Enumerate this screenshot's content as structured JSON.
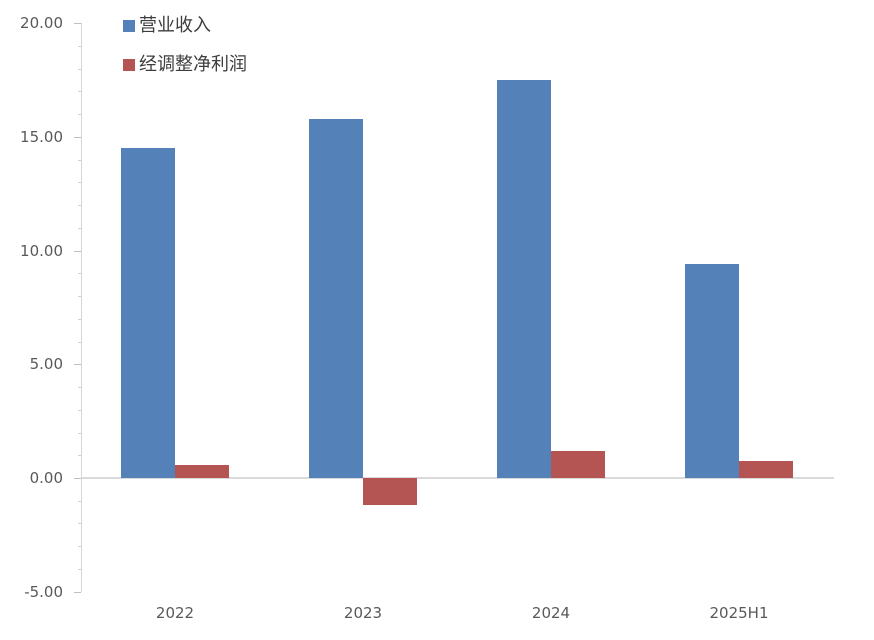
{
  "chart_data": {
    "type": "bar",
    "categories": [
      "2022",
      "2023",
      "2024",
      "2025H1"
    ],
    "series": [
      {
        "name": "营业收入",
        "color": "#5581B9",
        "values": [
          14.5,
          15.8,
          17.5,
          9.4
        ]
      },
      {
        "name": "经调整净利润",
        "color": "#B45553",
        "values": [
          0.55,
          -1.2,
          1.2,
          0.75
        ]
      }
    ],
    "title": "",
    "xlabel": "",
    "ylabel": "",
    "ylim": [
      -5,
      20
    ],
    "y_major_step": 5,
    "y_minor_step": 1,
    "y_tick_labels": [
      "20.00",
      "15.00",
      "10.00",
      "5.00",
      "0.00",
      "-5.00"
    ],
    "grid": "zero-line-only",
    "legend_position": "top-left",
    "axis_color": "#D6D6D6",
    "zero_line_color": "#D9D9D9",
    "label_color": "#595959",
    "background": "#FFFFFF"
  }
}
